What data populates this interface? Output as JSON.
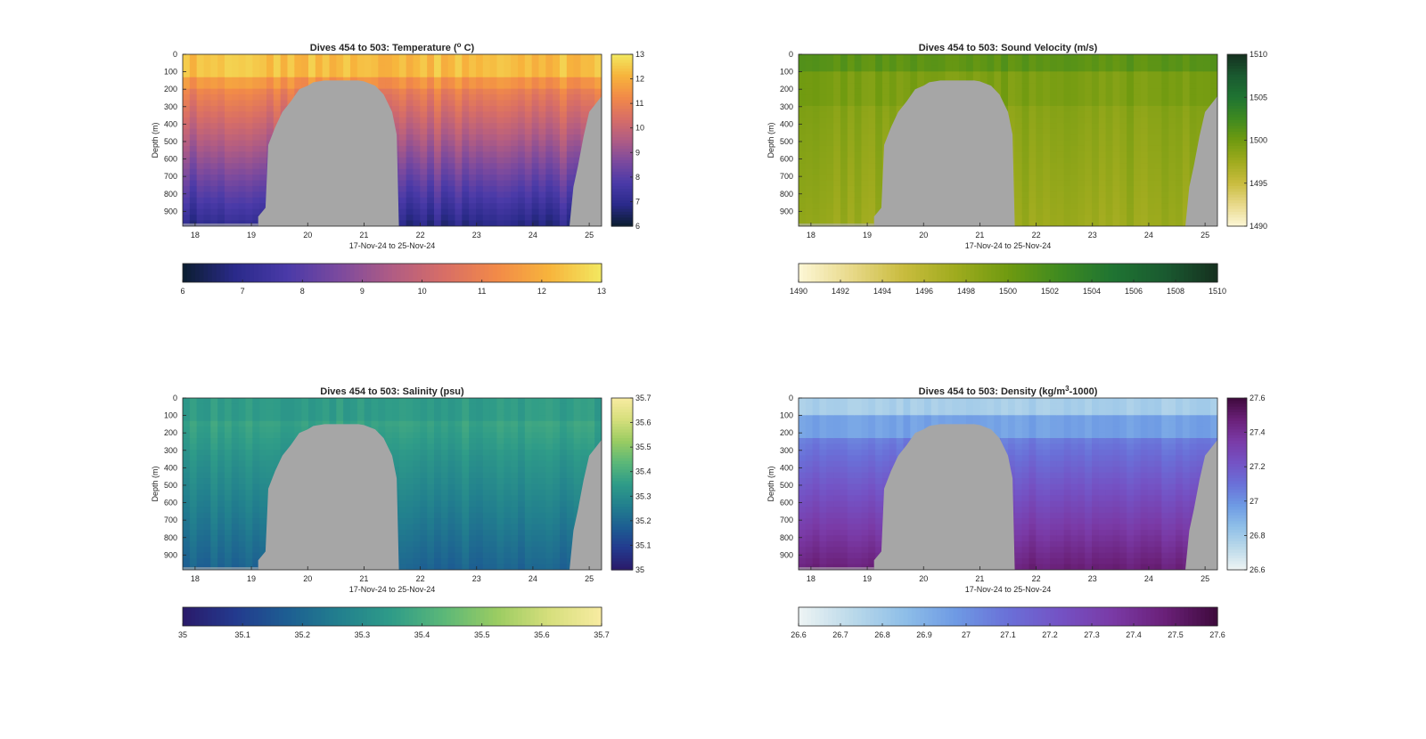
{
  "x_tick_labels": [
    "18",
    "19",
    "20",
    "21",
    "22",
    "23",
    "24",
    "25"
  ],
  "y_tick_labels": [
    "0",
    "100",
    "200",
    "300",
    "400",
    "500",
    "600",
    "700",
    "800",
    "900"
  ],
  "chart_data": [
    {
      "type": "heatmap",
      "title": "Dives 454 to 503: Temperature (",
      "title_sup": "o",
      "title_end": " C)",
      "xlabel": "17-Nov-24 to 25-Nov-24",
      "ylabel": "Depth (m)",
      "xlim": [
        17.78,
        25.22
      ],
      "ylim": [
        0,
        985
      ],
      "side_colorbar": {
        "ticks": [
          "13",
          "12",
          "11",
          "10",
          "9",
          "8",
          "7",
          "6"
        ]
      },
      "bottom_colorbar": {
        "ticks": [
          "6",
          "7",
          "8",
          "9",
          "10",
          "11",
          "12",
          "13"
        ]
      },
      "clim": [
        6,
        13
      ],
      "colormap": [
        "#0b1d30",
        "#2a2a8a",
        "#4a3aa8",
        "#7c4a9e",
        "#b05c84",
        "#d86e66",
        "#f28a48",
        "#f7b43c",
        "#f2e860"
      ],
      "depth_profile_note": "",
      "surface_value": 12.6,
      "deep_value": 7.4
    },
    {
      "type": "heatmap",
      "title": "Dives 454 to 503: Sound Velocity (m/s)",
      "xlabel": "17-Nov-24 to 25-Nov-24",
      "ylabel": "Depth (m)",
      "xlim": [
        17.78,
        25.22
      ],
      "ylim": [
        0,
        985
      ],
      "side_colorbar": {
        "ticks": [
          "1510",
          "1505",
          "1500",
          "1495",
          "1490"
        ]
      },
      "bottom_colorbar": {
        "ticks": [
          "1490",
          "1492",
          "1494",
          "1496",
          "1498",
          "1500",
          "1502",
          "1504",
          "1506",
          "1508",
          "1510"
        ]
      },
      "clim": [
        1490,
        1510
      ],
      "colormap": [
        "#fdf7d6",
        "#e8d98a",
        "#c9bc3e",
        "#9fab1e",
        "#6f9a10",
        "#3e8a20",
        "#1f7432",
        "#1a5a30",
        "#15301f"
      ],
      "surface_value": 1500.5,
      "deep_value": 1497.8
    },
    {
      "type": "heatmap",
      "title": "Dives 454 to 503: Salinity (psu)",
      "xlabel": "17-Nov-24 to 25-Nov-24",
      "ylabel": "Depth (m)",
      "xlim": [
        17.78,
        25.22
      ],
      "ylim": [
        0,
        985
      ],
      "side_colorbar": {
        "ticks": [
          "35.7",
          "35.6",
          "35.5",
          "35.4",
          "35.3",
          "35.2",
          "35.1",
          "35"
        ]
      },
      "bottom_colorbar": {
        "ticks": [
          "35",
          "35.1",
          "35.2",
          "35.3",
          "35.4",
          "35.5",
          "35.6",
          "35.7"
        ]
      },
      "clim": [
        35,
        35.7
      ],
      "colormap": [
        "#2a1a6a",
        "#233a8e",
        "#1d5e92",
        "#22808e",
        "#2f9c88",
        "#5cb878",
        "#9bcc62",
        "#d6df7c",
        "#f8eba2"
      ],
      "surface_value": 35.36,
      "deep_value": 35.22
    },
    {
      "type": "heatmap",
      "title": "Dives 454 to 503: Density (kg/m",
      "title_sup": "3",
      "title_end": "-1000)",
      "xlabel": "17-Nov-24 to 25-Nov-24",
      "ylabel": "Depth (m)",
      "xlim": [
        17.78,
        25.22
      ],
      "ylim": [
        0,
        985
      ],
      "side_colorbar": {
        "ticks": [
          "27.6",
          "27.4",
          "27.2",
          "27",
          "26.8",
          "26.6"
        ]
      },
      "bottom_colorbar": {
        "ticks": [
          "26.6",
          "26.7",
          "26.8",
          "26.9",
          "27",
          "27.1",
          "27.2",
          "27.3",
          "27.4",
          "27.5",
          "27.6"
        ]
      },
      "clim": [
        26.6,
        27.6
      ],
      "colormap": [
        "#eef4f4",
        "#bcdaea",
        "#8fbfe8",
        "#6e9ae4",
        "#6a70d8",
        "#7452c4",
        "#7a3aa6",
        "#6a2078",
        "#3e0a3c"
      ],
      "surface_value": 26.78,
      "deep_value": 27.48
    }
  ]
}
